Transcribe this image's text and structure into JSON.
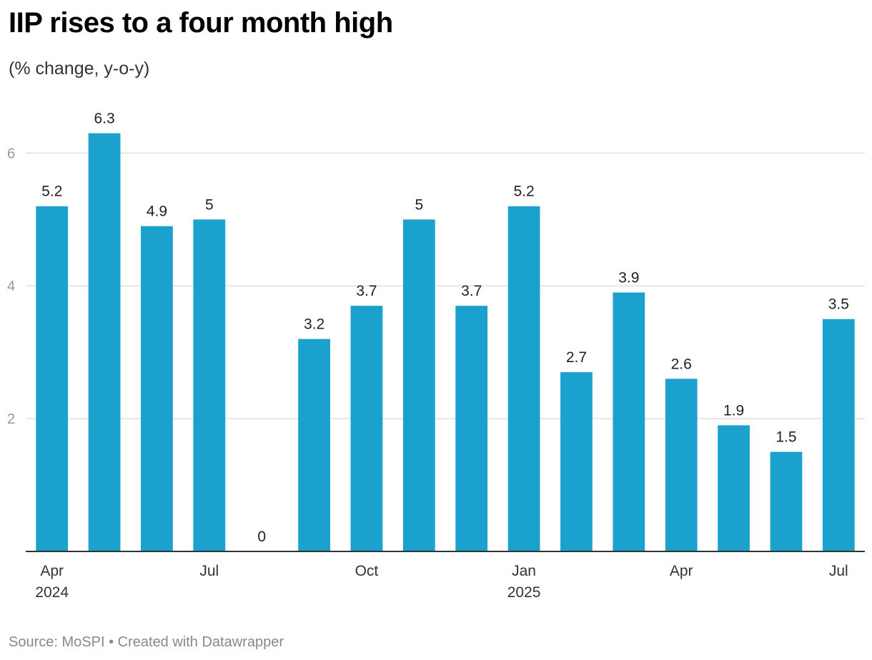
{
  "header": {
    "title": "IIP rises to a four month high",
    "subtitle": "(% change, y-o-y)"
  },
  "footer": {
    "source": "Source: MoSPI",
    "separator": "•",
    "credit": "Created with Datawrapper"
  },
  "chart_data": {
    "type": "bar",
    "title": "IIP rises to a four month high",
    "subtitle": "(% change, y-o-y)",
    "categories": [
      "Apr 2024",
      "May 2024",
      "Jun 2024",
      "Jul 2024",
      "Aug 2024",
      "Sep 2024",
      "Oct 2024",
      "Nov 2024",
      "Dec 2024",
      "Jan 2025",
      "Feb 2025",
      "Mar 2025",
      "Apr 2025",
      "May 2025",
      "Jun 2025",
      "Jul 2025"
    ],
    "values": [
      5.2,
      6.3,
      4.9,
      5,
      0,
      3.2,
      3.7,
      5,
      3.7,
      5.2,
      2.7,
      3.9,
      2.6,
      1.9,
      1.5,
      3.5
    ],
    "value_labels": [
      "5.2",
      "6.3",
      "4.9",
      "5",
      "0",
      "3.2",
      "3.7",
      "5",
      "3.7",
      "5.2",
      "2.7",
      "3.9",
      "2.6",
      "1.9",
      "1.5",
      "3.5"
    ],
    "x_tick_labels": [
      {
        "index": 0,
        "lines": [
          "Apr",
          "2024"
        ]
      },
      {
        "index": 3,
        "lines": [
          "Jul"
        ]
      },
      {
        "index": 6,
        "lines": [
          "Oct"
        ]
      },
      {
        "index": 9,
        "lines": [
          "Jan",
          "2025"
        ]
      },
      {
        "index": 12,
        "lines": [
          "Apr"
        ]
      },
      {
        "index": 15,
        "lines": [
          "Jul"
        ]
      }
    ],
    "y_ticks": [
      2,
      4,
      6
    ],
    "ylim": [
      0,
      6.8
    ],
    "grid": true,
    "bar_color": "#1aa1ce",
    "xlabel": "",
    "ylabel": ""
  }
}
